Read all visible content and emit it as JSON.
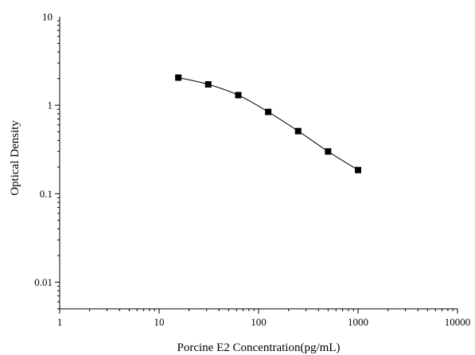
{
  "chart_data": {
    "type": "line",
    "title": "",
    "xlabel": "Porcine E2 Concentration(pg/mL)",
    "ylabel": "Optical Density",
    "x_scale": "log",
    "y_scale": "log",
    "xlim": [
      1,
      10000
    ],
    "ylim": [
      0.005,
      10
    ],
    "grid": false,
    "x_ticks": [
      {
        "value": 1,
        "label": "1"
      },
      {
        "value": 10,
        "label": "10"
      },
      {
        "value": 100,
        "label": "100"
      },
      {
        "value": 1000,
        "label": "1000"
      },
      {
        "value": 10000,
        "label": "10000"
      }
    ],
    "y_ticks": [
      {
        "value": 0.01,
        "label": "0.01"
      },
      {
        "value": 0.1,
        "label": "0.1"
      },
      {
        "value": 1,
        "label": "1"
      },
      {
        "value": 10,
        "label": "10"
      }
    ],
    "series": [
      {
        "marker": "square",
        "color": "#000000",
        "x": [
          15.6,
          31.2,
          62.5,
          125,
          250,
          500,
          1000
        ],
        "y": [
          2.05,
          1.72,
          1.3,
          0.84,
          0.51,
          0.3,
          0.185
        ]
      }
    ]
  }
}
